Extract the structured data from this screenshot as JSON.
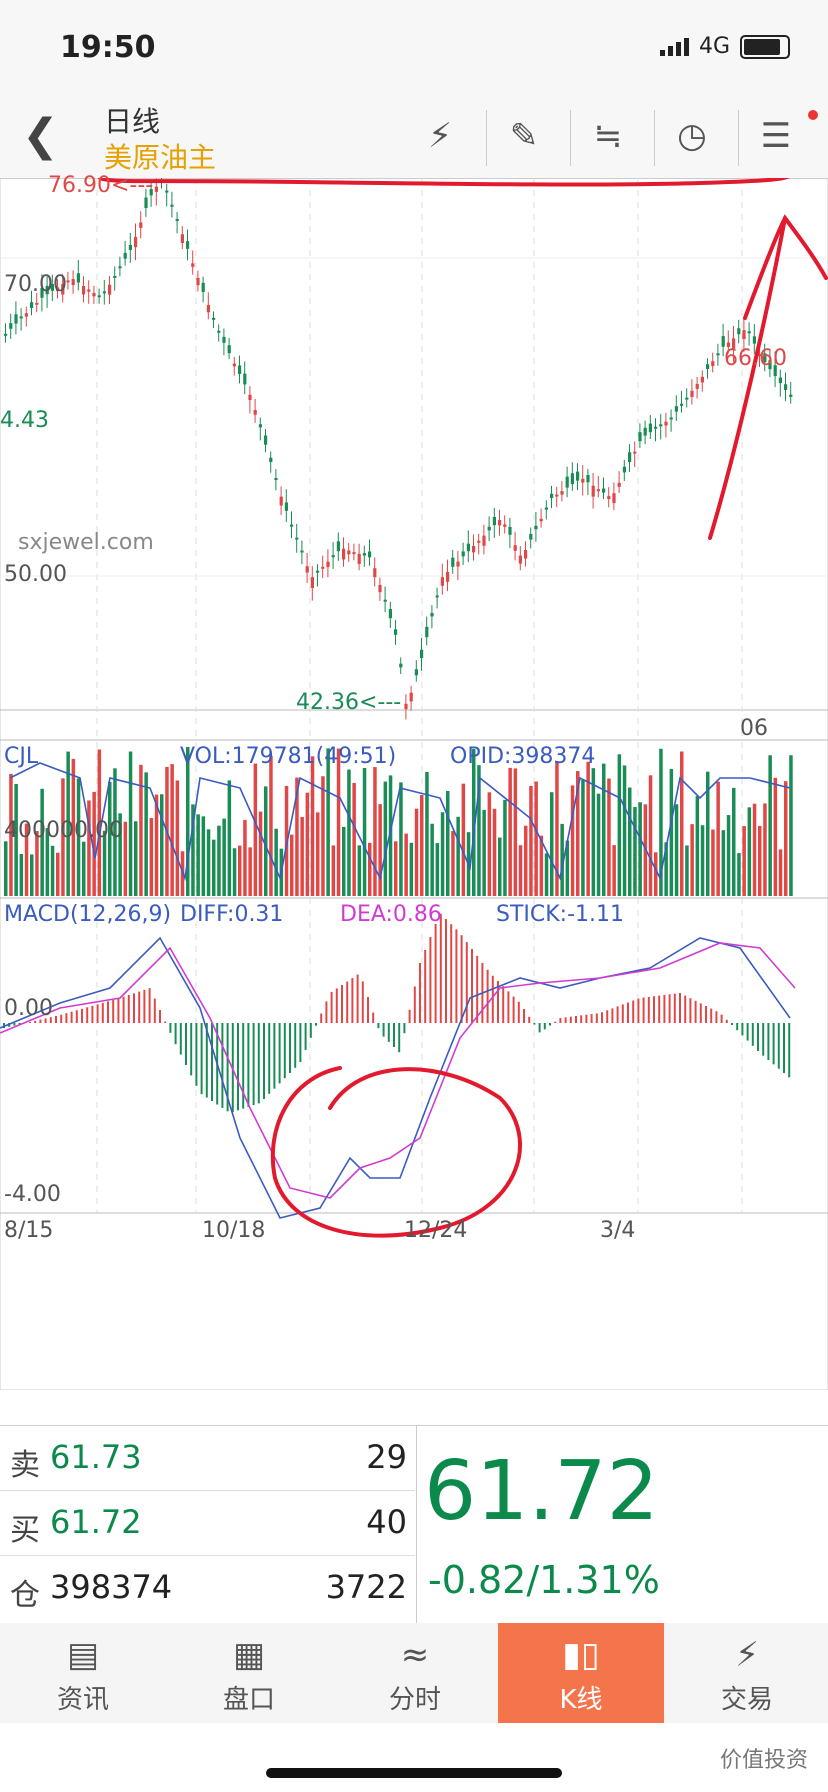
{
  "status": {
    "time": "19:50",
    "network": "4G"
  },
  "nav": {
    "period": "日线",
    "instrument": "美原油主"
  },
  "toolbar_icons": [
    "flash-icon",
    "pen-icon",
    "trend-icon",
    "clock-icon",
    "menu-icon"
  ],
  "price_chart": {
    "high_label": "76.90<---",
    "low_label": "42.36<---",
    "peak_label": "66.60",
    "y_labels": [
      "70.00",
      "50.00"
    ],
    "left_label": "4.43",
    "watermark": "sxjewel.com",
    "date_label": "06"
  },
  "volume": {
    "name": "CJL",
    "vol": "VOL:179781(49:51)",
    "opid": "OPID:398374",
    "axis": "400000.00"
  },
  "macd": {
    "name": "MACD(12,26,9)",
    "diff": "DIFF:0.31",
    "dea": "DEA:0.86",
    "stick": "STICK:-1.11",
    "y0": "0.00",
    "ymin": "-4.00"
  },
  "dates": [
    "8/15",
    "10/18",
    "12/24",
    "3/4"
  ],
  "quote": {
    "sell_label": "卖",
    "sell_price": "61.73",
    "sell_qty": "29",
    "buy_label": "买",
    "buy_price": "61.72",
    "buy_qty": "40",
    "pos_label": "仓",
    "pos_value": "398374",
    "pos_change": "3722",
    "last": "61.72",
    "change": "-0.82/1.31%"
  },
  "tabs": [
    {
      "label": "资讯"
    },
    {
      "label": "盘口"
    },
    {
      "label": "分时"
    },
    {
      "label": "K线"
    },
    {
      "label": "交易"
    }
  ],
  "footer_watermark": "价值投资",
  "colors": {
    "up": "#e04848",
    "down": "#1a8c55",
    "accent": "#f4754b",
    "diff": "#3a5bbf",
    "dea": "#d23bd2",
    "annotation": "#e21a2e"
  }
}
